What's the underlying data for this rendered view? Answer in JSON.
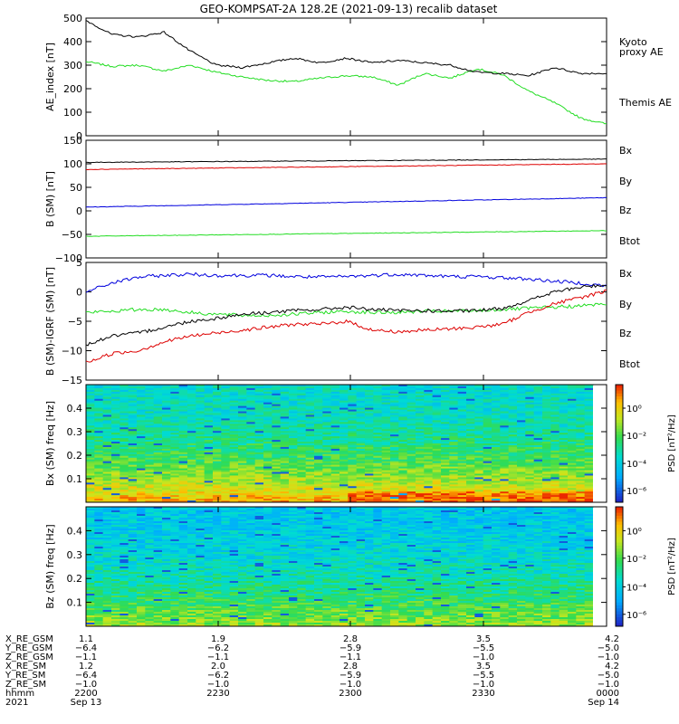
{
  "title": "GEO-KOMPSAT-2A 128.2E (2021-09-13) recalib dataset",
  "colors": {
    "black": "#000000",
    "blue": "#0000dd",
    "green": "#22dd22",
    "red": "#dd0000"
  },
  "chart_data": [
    {
      "type": "line",
      "ylabel": "AE_index [nT]",
      "ylim": [
        0,
        500
      ],
      "yticks": [
        0,
        100,
        200,
        300,
        400,
        500
      ],
      "x": [
        0.0,
        0.05,
        0.1,
        0.15,
        0.2,
        0.25,
        0.3,
        0.35,
        0.4,
        0.45,
        0.5,
        0.55,
        0.6,
        0.65,
        0.7,
        0.75,
        0.8,
        0.85,
        0.9,
        0.95,
        1.0
      ],
      "series": [
        {
          "name": "Kyoto proxy AE",
          "color": "green",
          "label_lines": [
            "Kyoto",
            "proxy AE"
          ],
          "values": [
            315,
            295,
            300,
            275,
            300,
            270,
            250,
            235,
            230,
            245,
            255,
            250,
            215,
            265,
            245,
            285,
            260,
            190,
            140,
            75,
            50
          ]
        },
        {
          "name": "Themis AE",
          "color": "black",
          "label_lines": [
            "Themis AE"
          ],
          "values": [
            490,
            430,
            420,
            440,
            360,
            300,
            290,
            310,
            330,
            310,
            330,
            310,
            320,
            310,
            300,
            270,
            265,
            255,
            290,
            265,
            265
          ]
        }
      ]
    },
    {
      "type": "line",
      "ylabel": "B (SM) [nT]",
      "ylim": [
        -100,
        150
      ],
      "yticks": [
        -100,
        -50,
        0,
        50,
        100,
        150
      ],
      "x": [
        0.0,
        1.0
      ],
      "series": [
        {
          "name": "Bx",
          "color": "blue",
          "values": [
            8,
            28
          ]
        },
        {
          "name": "By",
          "color": "green",
          "values": [
            -54,
            -42
          ]
        },
        {
          "name": "Bz",
          "color": "red",
          "values": [
            88,
            100
          ]
        },
        {
          "name": "Btot",
          "color": "black",
          "values": [
            103,
            110
          ]
        }
      ]
    },
    {
      "type": "line",
      "ylabel": "B (SM)-IGRF (SM) [nT]",
      "ylim": [
        -15,
        5
      ],
      "yticks": [
        -15,
        -10,
        -5,
        0,
        5
      ],
      "x": [
        0.0,
        0.05,
        0.1,
        0.15,
        0.2,
        0.25,
        0.3,
        0.35,
        0.4,
        0.45,
        0.5,
        0.55,
        0.6,
        0.65,
        0.7,
        0.75,
        0.8,
        0.85,
        0.9,
        0.95,
        1.0
      ],
      "series": [
        {
          "name": "Bx",
          "color": "blue",
          "values": [
            0,
            1.5,
            2.5,
            2.8,
            3.0,
            2.8,
            2.8,
            2.8,
            2.6,
            2.5,
            2.6,
            2.8,
            3.0,
            2.8,
            2.6,
            2.6,
            2.4,
            2.2,
            1.8,
            1.5,
            1.0
          ]
        },
        {
          "name": "By",
          "color": "green",
          "values": [
            -3.5,
            -3.3,
            -3.0,
            -3.0,
            -3.5,
            -3.8,
            -4.0,
            -4.0,
            -3.8,
            -3.5,
            -3.3,
            -3.5,
            -3.5,
            -3.3,
            -3.3,
            -3.2,
            -3.0,
            -2.8,
            -2.6,
            -2.4,
            -2.0
          ]
        },
        {
          "name": "Bz",
          "color": "red",
          "values": [
            -12,
            -10.5,
            -10,
            -8.5,
            -7.5,
            -7,
            -6.5,
            -6,
            -5.5,
            -5.5,
            -5,
            -6.5,
            -6.8,
            -6.5,
            -6.3,
            -6,
            -5.5,
            -3.5,
            -2.0,
            -1.0,
            0.2
          ]
        },
        {
          "name": "Btot",
          "color": "black",
          "values": [
            -9,
            -7.5,
            -7,
            -6,
            -5,
            -4.5,
            -3.8,
            -3.5,
            -3.2,
            -3.0,
            -2.6,
            -3.0,
            -3.2,
            -3.2,
            -3.3,
            -3.2,
            -2.8,
            -1.5,
            0.0,
            0.8,
            1.2
          ]
        }
      ]
    },
    {
      "type": "heatmap",
      "ylabel": "Bx (SM) freq [Hz]",
      "ylim": [
        0,
        0.5
      ],
      "yticks": [
        0.1,
        0.2,
        0.3,
        0.4
      ],
      "colorbar": {
        "label": "PSD [nT²/Hz]",
        "ticks": [
          "10⁰",
          "10⁻²",
          "10⁻⁴",
          "10⁻⁶"
        ]
      }
    },
    {
      "type": "heatmap",
      "ylabel": "Bz (SM) freq [Hz]",
      "ylim": [
        0,
        0.5
      ],
      "yticks": [
        0.1,
        0.2,
        0.3,
        0.4
      ],
      "colorbar": {
        "label": "PSD [nT²/Hz]",
        "ticks": [
          "10⁰",
          "10⁻²",
          "10⁻⁴",
          "10⁻⁶"
        ]
      }
    }
  ],
  "ephemeris": {
    "rows": [
      {
        "label": "X_RE_GSM",
        "values": [
          "1.1",
          "1.9",
          "2.8",
          "3.5",
          "4.2"
        ]
      },
      {
        "label": "Y_RE_GSM",
        "values": [
          "−6.4",
          "−6.2",
          "−5.9",
          "−5.5",
          "−5.0"
        ]
      },
      {
        "label": "Z_RE_GSM",
        "values": [
          "−1.1",
          "−1.1",
          "−1.1",
          "−1.0",
          "−1.0"
        ]
      },
      {
        "label": "X_RE_SM",
        "values": [
          "1.2",
          "2.0",
          "2.8",
          "3.5",
          "4.2"
        ]
      },
      {
        "label": "Y_RE_SM",
        "values": [
          "−6.4",
          "−6.2",
          "−5.9",
          "−5.5",
          "−5.0"
        ]
      },
      {
        "label": "Z_RE_SM",
        "values": [
          "−1.0",
          "−1.0",
          "−1.0",
          "−1.0",
          "−1.0"
        ]
      },
      {
        "label": "hhmm",
        "values": [
          "2200",
          "2230",
          "2300",
          "2330",
          "0000"
        ]
      }
    ],
    "year": "2021",
    "start_date": "Sep 13",
    "end_date": "Sep 14"
  }
}
